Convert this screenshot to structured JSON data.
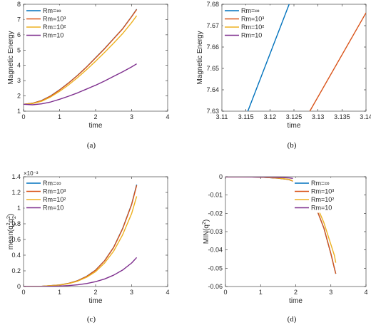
{
  "colors": {
    "inf": "#0072BD",
    "rm1000": "#D95319",
    "rm100": "#EDB120",
    "rm10": "#7E2F8E",
    "axis": "#262626"
  },
  "legend_entries": [
    "Rm=∞",
    "Rm=10³",
    "Rm=10²",
    "Rm=10"
  ],
  "chart_data": [
    {
      "type": "line",
      "caption": "(a)",
      "xlabel": "time",
      "ylabel": "Magnetic Energy",
      "xlim": [
        0,
        4
      ],
      "ylim": [
        1,
        8
      ],
      "xticks": [
        "0",
        "1",
        "2",
        "3",
        "4"
      ],
      "yticks": [
        "1",
        "2",
        "3",
        "4",
        "5",
        "6",
        "7",
        "8"
      ],
      "legend": "top-left",
      "series": [
        {
          "name": "Rm=∞",
          "color": "#0072BD",
          "x": [
            0,
            0.25,
            0.5,
            0.75,
            1.0,
            1.25,
            1.5,
            1.75,
            2.0,
            2.25,
            2.5,
            2.75,
            3.0,
            3.14
          ],
          "y": [
            1.45,
            1.52,
            1.7,
            2.0,
            2.4,
            2.85,
            3.35,
            3.9,
            4.5,
            5.1,
            5.75,
            6.4,
            7.2,
            7.68
          ]
        },
        {
          "name": "Rm=10³",
          "color": "#D95319",
          "x": [
            0,
            0.25,
            0.5,
            0.75,
            1.0,
            1.25,
            1.5,
            1.75,
            2.0,
            2.25,
            2.5,
            2.75,
            3.0,
            3.14
          ],
          "y": [
            1.45,
            1.52,
            1.69,
            1.99,
            2.39,
            2.84,
            3.34,
            3.89,
            4.49,
            5.09,
            5.74,
            6.39,
            7.19,
            7.66
          ]
        },
        {
          "name": "Rm=10²",
          "color": "#EDB120",
          "x": [
            0,
            0.25,
            0.5,
            0.75,
            1.0,
            1.25,
            1.5,
            1.75,
            2.0,
            2.25,
            2.5,
            2.75,
            3.0,
            3.14
          ],
          "y": [
            1.45,
            1.5,
            1.65,
            1.93,
            2.3,
            2.72,
            3.2,
            3.72,
            4.27,
            4.85,
            5.45,
            6.08,
            6.8,
            7.25
          ]
        },
        {
          "name": "Rm=10",
          "color": "#7E2F8E",
          "x": [
            0,
            0.25,
            0.5,
            0.75,
            1.0,
            1.25,
            1.5,
            1.75,
            2.0,
            2.25,
            2.5,
            2.75,
            3.0,
            3.14
          ],
          "y": [
            1.45,
            1.42,
            1.48,
            1.6,
            1.78,
            1.98,
            2.2,
            2.45,
            2.7,
            2.98,
            3.28,
            3.58,
            3.9,
            4.1
          ]
        }
      ]
    },
    {
      "type": "line",
      "caption": "(b)",
      "xlabel": "time",
      "ylabel": "Magnetic Energy",
      "xlim": [
        3.11,
        3.14
      ],
      "ylim": [
        7.63,
        7.68
      ],
      "xticks": [
        "3.11",
        "3.115",
        "3.12",
        "3.125",
        "3.13",
        "3.135",
        "3.14"
      ],
      "yticks": [
        "7.63",
        "7.64",
        "7.65",
        "7.66",
        "7.67",
        "7.68"
      ],
      "legend": "top-left",
      "series": [
        {
          "name": "Rm=∞",
          "color": "#0072BD",
          "x": [
            3.1154,
            3.124
          ],
          "y": [
            7.63,
            7.68
          ]
        },
        {
          "name": "Rm=10³",
          "color": "#D95319",
          "x": [
            3.1283,
            3.14
          ],
          "y": [
            7.63,
            7.676
          ]
        },
        {
          "name": "Rm=10²",
          "color": "#EDB120",
          "x": [],
          "y": []
        },
        {
          "name": "Rm=10",
          "color": "#7E2F8E",
          "x": [],
          "y": []
        }
      ]
    },
    {
      "type": "line",
      "caption": "(c)",
      "xlabel": "time",
      "ylabel_parts": {
        "base": "mean(q",
        "sup1": "2",
        "sub1": "1",
        "mid": "q",
        "sup2": "2",
        "sub2": "2",
        "end": ")"
      },
      "multiplier": "×10⁻³",
      "xlim": [
        0,
        4
      ],
      "ylim": [
        0,
        1.4
      ],
      "xticks": [
        "0",
        "1",
        "2",
        "3",
        "4"
      ],
      "yticks": [
        "0",
        "0.2",
        "0.4",
        "0.6",
        "0.8",
        "1",
        "1.2",
        "1.4"
      ],
      "legend": "top-left",
      "series": [
        {
          "name": "Rm=∞",
          "color": "#0072BD",
          "x": [
            0,
            0.5,
            1.0,
            1.25,
            1.5,
            1.75,
            2.0,
            2.25,
            2.5,
            2.75,
            3.0,
            3.14
          ],
          "y": [
            0,
            0.003,
            0.02,
            0.04,
            0.075,
            0.13,
            0.21,
            0.33,
            0.5,
            0.74,
            1.05,
            1.3
          ]
        },
        {
          "name": "Rm=10³",
          "color": "#D95319",
          "x": [
            0,
            0.5,
            1.0,
            1.25,
            1.5,
            1.75,
            2.0,
            2.25,
            2.5,
            2.75,
            3.0,
            3.14
          ],
          "y": [
            0,
            0.003,
            0.02,
            0.04,
            0.074,
            0.128,
            0.208,
            0.328,
            0.497,
            0.736,
            1.045,
            1.29
          ]
        },
        {
          "name": "Rm=10²",
          "color": "#EDB120",
          "x": [
            0,
            0.5,
            1.0,
            1.25,
            1.5,
            1.75,
            2.0,
            2.25,
            2.5,
            2.75,
            3.0,
            3.14
          ],
          "y": [
            0,
            0.003,
            0.019,
            0.037,
            0.068,
            0.118,
            0.19,
            0.3,
            0.45,
            0.66,
            0.93,
            1.15
          ]
        },
        {
          "name": "Rm=10",
          "color": "#7E2F8E",
          "x": [
            0,
            0.5,
            1.0,
            1.25,
            1.5,
            1.75,
            2.0,
            2.25,
            2.5,
            2.75,
            3.0,
            3.14
          ],
          "y": [
            0,
            0.001,
            0.006,
            0.012,
            0.022,
            0.038,
            0.062,
            0.096,
            0.145,
            0.21,
            0.3,
            0.37
          ]
        }
      ]
    },
    {
      "type": "line",
      "caption": "(d)",
      "xlabel": "time",
      "ylabel_parts": {
        "base": "MIN(q",
        "sup1": "2",
        "end": ")"
      },
      "xlim": [
        0,
        4
      ],
      "ylim": [
        -0.06,
        0
      ],
      "xticks": [
        "0",
        "1",
        "2",
        "3",
        "4"
      ],
      "yticks": [
        "-0.06",
        "-0.05",
        "-0.04",
        "-0.03",
        "-0.02",
        "-0.01",
        "0"
      ],
      "legend": "top-right",
      "series": [
        {
          "name": "Rm=∞",
          "color": "#0072BD",
          "x": [
            0,
            0.5,
            1.0,
            1.5,
            1.8,
            2.0,
            2.2,
            2.4,
            2.6,
            2.8,
            2.9,
            3.0,
            3.1,
            3.14
          ],
          "y": [
            0,
            0,
            -0.0002,
            -0.0008,
            -0.0015,
            -0.003,
            -0.006,
            -0.011,
            -0.018,
            -0.028,
            -0.035,
            -0.042,
            -0.05,
            -0.053
          ]
        },
        {
          "name": "Rm=10³",
          "color": "#D95319",
          "x": [
            0,
            0.5,
            1.0,
            1.5,
            1.8,
            2.0,
            2.2,
            2.4,
            2.6,
            2.8,
            2.9,
            3.0,
            3.1,
            3.14
          ],
          "y": [
            0,
            0,
            -0.0002,
            -0.0008,
            -0.0015,
            -0.003,
            -0.006,
            -0.011,
            -0.018,
            -0.028,
            -0.035,
            -0.042,
            -0.05,
            -0.053
          ]
        },
        {
          "name": "Rm=10²",
          "color": "#EDB120",
          "x": [
            0,
            0.5,
            1.0,
            1.5,
            1.8,
            2.0,
            2.2,
            2.4,
            2.6,
            2.8,
            2.9,
            3.0,
            3.1,
            3.14
          ],
          "y": [
            0,
            0,
            -0.0002,
            -0.0007,
            -0.0014,
            -0.0028,
            -0.0055,
            -0.0098,
            -0.016,
            -0.025,
            -0.031,
            -0.037,
            -0.043,
            -0.047
          ]
        },
        {
          "name": "Rm=10",
          "color": "#7E2F8E",
          "x": [
            0,
            0.5,
            1.0,
            1.5,
            1.8,
            2.0,
            2.2,
            2.4,
            2.6,
            2.8,
            2.9,
            3.0,
            3.1,
            3.14
          ],
          "y": [
            0,
            0,
            -0.0001,
            -0.0003,
            -0.0006,
            -0.0011,
            -0.002,
            -0.0035,
            -0.0055,
            -0.008,
            -0.0098,
            -0.0115,
            -0.0135,
            -0.015
          ]
        }
      ]
    }
  ]
}
